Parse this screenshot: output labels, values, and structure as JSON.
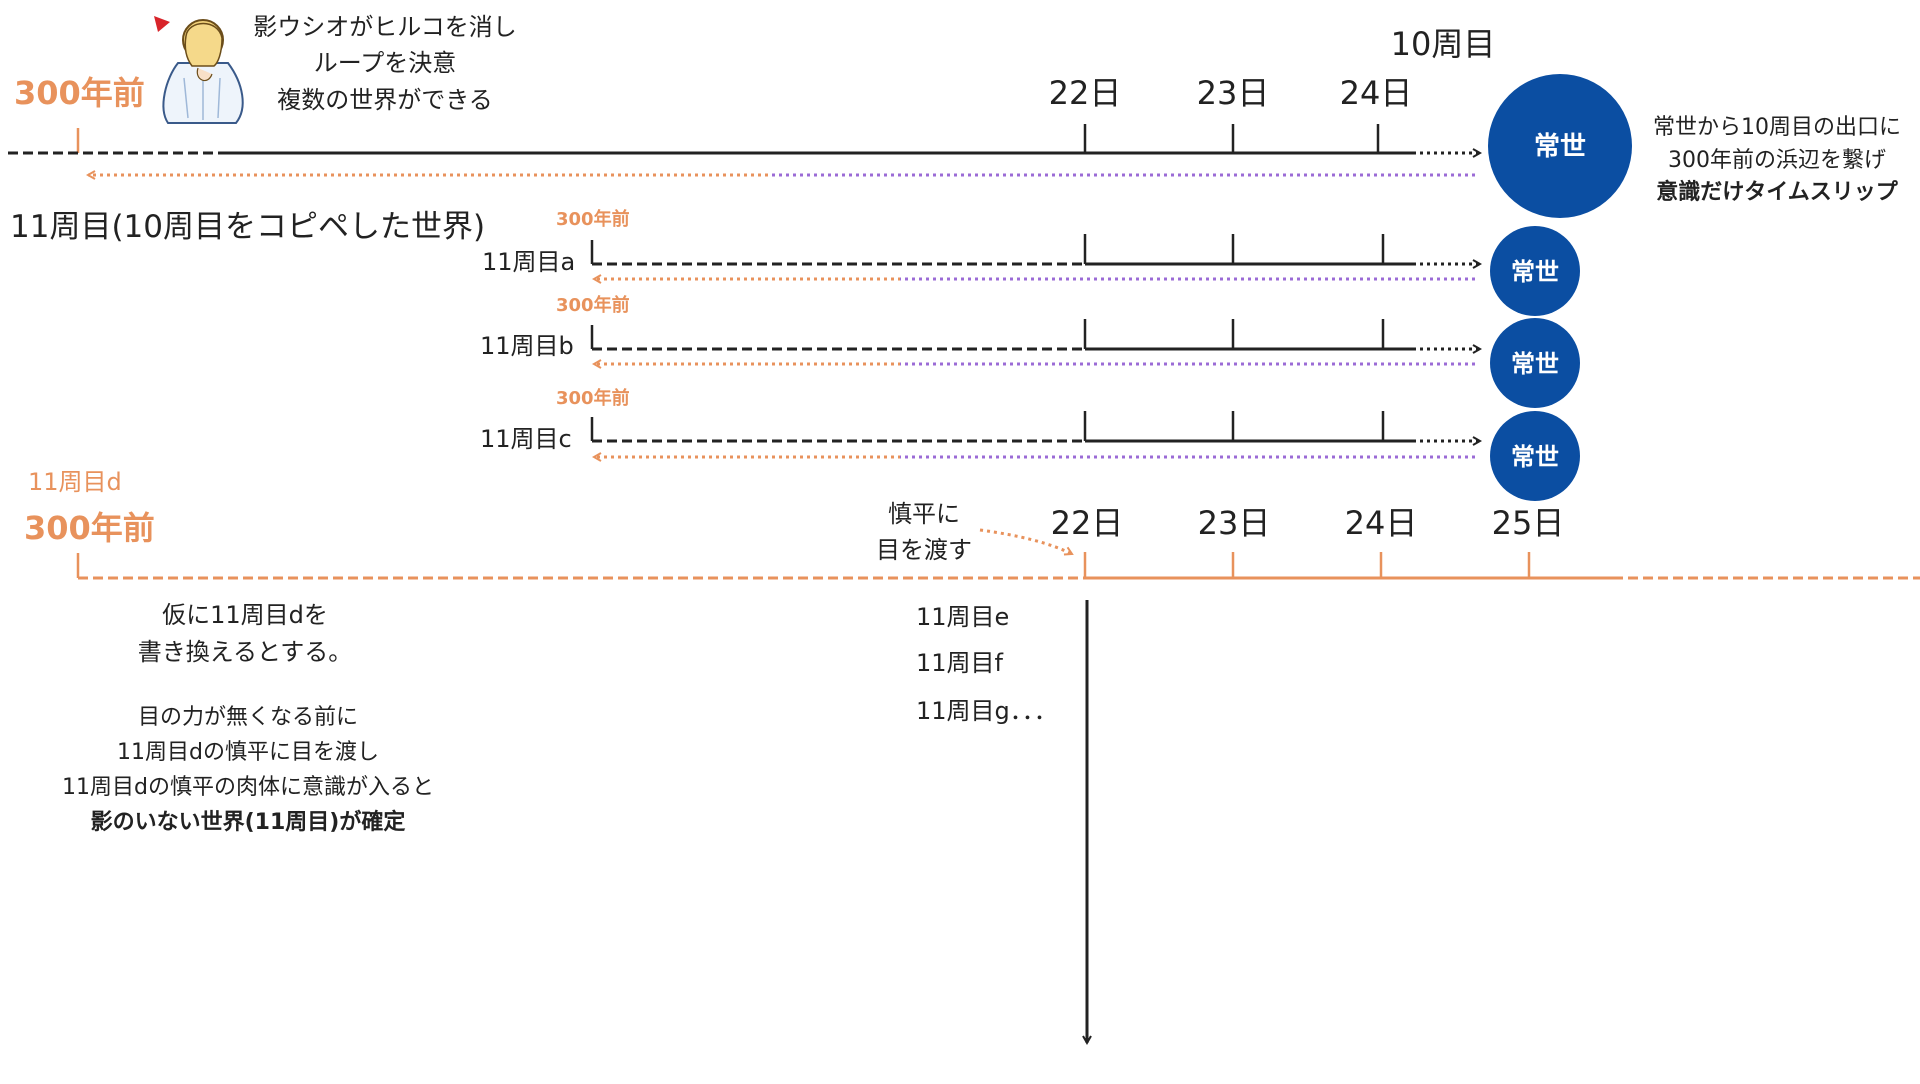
{
  "colors": {
    "orange": "#e8925c",
    "purple": "#9b6bd6",
    "navy": "#0b4ea2",
    "black": "#222222"
  },
  "top": {
    "event_lines": [
      "影ウシオがヒルコを消し",
      "ループを決意",
      "複数の世界ができる"
    ],
    "loop_label": "10周目",
    "start_label": "300年前",
    "days": [
      "22日",
      "23日",
      "24日"
    ],
    "tokoyo": "常世",
    "note_lines": [
      "常世から10周目の出口に",
      "300年前の浜辺を繋げ"
    ],
    "note_bold": "意識だけタイムスリップ",
    "icon": "kneeling-girl-icon"
  },
  "section11": {
    "title": "11周目(10周目をコピペした世界)",
    "worlds": [
      {
        "label": "11周目a",
        "start": "300年前",
        "tokoyo": "常世"
      },
      {
        "label": "11周目b",
        "start": "300年前",
        "tokoyo": "常世"
      },
      {
        "label": "11周目c",
        "start": "300年前",
        "tokoyo": "常世"
      }
    ]
  },
  "bottom": {
    "label": "11周目d",
    "start_label": "300年前",
    "days": [
      "22日",
      "23日",
      "24日",
      "25日"
    ],
    "handover_lines": [
      "慎平に",
      "目を渡す"
    ],
    "desc1_lines": [
      "仮に11周目dを",
      "書き換えるとする。"
    ],
    "desc2_lines": [
      "目の力が無くなる前に",
      "11周目dの慎平に目を渡し",
      "11周目dの慎平の肉体に意識が入ると"
    ],
    "desc2_bold": "影のいない世界(11周目)が確定",
    "branches": [
      "11周目e",
      "11周目f",
      "11周目g．．．"
    ]
  }
}
